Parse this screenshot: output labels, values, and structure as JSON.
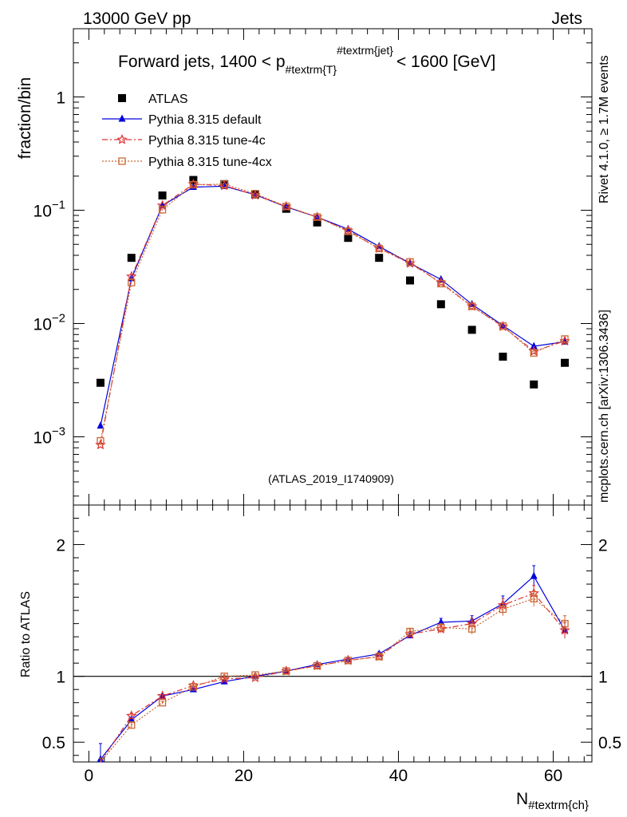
{
  "header": {
    "left": "13000 GeV pp",
    "right": "Jets"
  },
  "side_text": {
    "rivet": "Rivet 4.1.0, ≥ 1.7M events",
    "mcplots": "mcplots.cern.ch [arXiv:1306.3436]"
  },
  "colors": {
    "atlas": "#000000",
    "default": "#0000dd",
    "tune4c": "#dd3333",
    "tune4cx": "#cc6633"
  },
  "chart_data": [
    {
      "type": "scatter",
      "panel": "main",
      "title": "Forward jets, 1400 < p_{#textrm{T}}^{#textrm{jet}} < 1600 [GeV]",
      "title_parts": {
        "prefix": "Forward jets, 1400 < p",
        "sub": "#textrm{T}",
        "sup": "#textrm{jet}",
        "suffix": "< 1600 [GeV]"
      },
      "ylabel": "fraction/bin",
      "yscale": "log",
      "ylim": [
        0.00025,
        4.0
      ],
      "xlim": [
        -2,
        65
      ],
      "ytick_labels": [
        {
          "base": "10",
          "exp": "−3"
        },
        {
          "base": "10",
          "exp": "−2"
        },
        {
          "base": "10",
          "exp": "−1"
        },
        {
          "base": "1",
          "exp": ""
        }
      ],
      "watermark": "(ATLAS_2019_I1740909)",
      "legend_position": "top-left",
      "x": [
        1.5,
        5.5,
        9.5,
        13.5,
        17.5,
        21.5,
        25.5,
        29.5,
        33.5,
        37.5,
        41.5,
        45.5,
        49.5,
        53.5,
        57.5,
        61.5
      ],
      "series": [
        {
          "name": "ATLAS",
          "marker": "filled-square",
          "line": "none",
          "values": [
            0.003,
            0.038,
            0.135,
            0.185,
            0.17,
            0.138,
            0.103,
            0.078,
            0.057,
            0.038,
            0.024,
            0.0148,
            0.0088,
            0.0051,
            0.0029,
            0.0045
          ]
        },
        {
          "name": "Pythia 8.315 default",
          "marker": "filled-triangle",
          "line": "solid",
          "values": [
            0.00125,
            0.025,
            0.11,
            0.16,
            0.163,
            0.137,
            0.107,
            0.087,
            0.068,
            0.048,
            0.034,
            0.0245,
            0.0148,
            0.0096,
            0.0063,
            0.0069
          ]
        },
        {
          "name": "Pythia 8.315 tune-4c",
          "marker": "open-star",
          "line": "dash-dot",
          "values": [
            0.00085,
            0.026,
            0.11,
            0.17,
            0.165,
            0.136,
            0.108,
            0.087,
            0.066,
            0.046,
            0.034,
            0.023,
            0.0142,
            0.0094,
            0.0057,
            0.007
          ]
        },
        {
          "name": "Pythia 8.315 tune-4cx",
          "marker": "open-square",
          "line": "dotted",
          "values": [
            0.00092,
            0.023,
            0.101,
            0.168,
            0.17,
            0.14,
            0.108,
            0.087,
            0.065,
            0.046,
            0.035,
            0.0225,
            0.0142,
            0.0095,
            0.0055,
            0.0073
          ]
        }
      ]
    },
    {
      "type": "line",
      "panel": "ratio",
      "ylabel": "Ratio to ATLAS",
      "xlabel": "N_{#textrm{ch}}",
      "xlabel_parts": {
        "main": "N",
        "sub": "#textrm{ch}"
      },
      "ylim": [
        0.35,
        2.3
      ],
      "xlim": [
        -2,
        65
      ],
      "yticks": [
        "0.5",
        "1",
        "2"
      ],
      "xticks": [
        "0",
        "20",
        "40",
        "60"
      ],
      "x": [
        1.5,
        5.5,
        9.5,
        13.5,
        17.5,
        21.5,
        25.5,
        29.5,
        33.5,
        37.5,
        41.5,
        45.5,
        49.5,
        53.5,
        57.5,
        61.5
      ],
      "series": [
        {
          "name": "Pythia 8.315 default",
          "values": [
            0.37,
            0.67,
            0.85,
            0.9,
            0.96,
            1.0,
            1.04,
            1.09,
            1.13,
            1.17,
            1.31,
            1.41,
            1.42,
            1.55,
            1.76,
            1.35
          ],
          "errors": [
            0.12,
            0.02,
            0.01,
            0.01,
            0.01,
            0.01,
            0.01,
            0.01,
            0.01,
            0.015,
            0.02,
            0.03,
            0.04,
            0.06,
            0.08,
            0.06
          ]
        },
        {
          "name": "Pythia 8.315 tune-4c",
          "values": [
            0.28,
            0.7,
            0.85,
            0.93,
            0.98,
            0.99,
            1.04,
            1.08,
            1.12,
            1.15,
            1.32,
            1.36,
            1.4,
            1.54,
            1.63,
            1.35
          ],
          "errors": [
            0.08,
            0.02,
            0.01,
            0.01,
            0.01,
            0.01,
            0.01,
            0.01,
            0.01,
            0.015,
            0.02,
            0.03,
            0.04,
            0.05,
            0.06,
            0.06
          ]
        },
        {
          "name": "Pythia 8.315 tune-4cx",
          "values": [
            0.3,
            0.63,
            0.8,
            0.92,
            1.0,
            1.01,
            1.04,
            1.08,
            1.12,
            1.15,
            1.34,
            1.37,
            1.36,
            1.51,
            1.59,
            1.4
          ],
          "errors": [
            0.08,
            0.02,
            0.01,
            0.01,
            0.01,
            0.01,
            0.01,
            0.01,
            0.01,
            0.015,
            0.02,
            0.03,
            0.04,
            0.05,
            0.06,
            0.06
          ]
        }
      ]
    }
  ]
}
